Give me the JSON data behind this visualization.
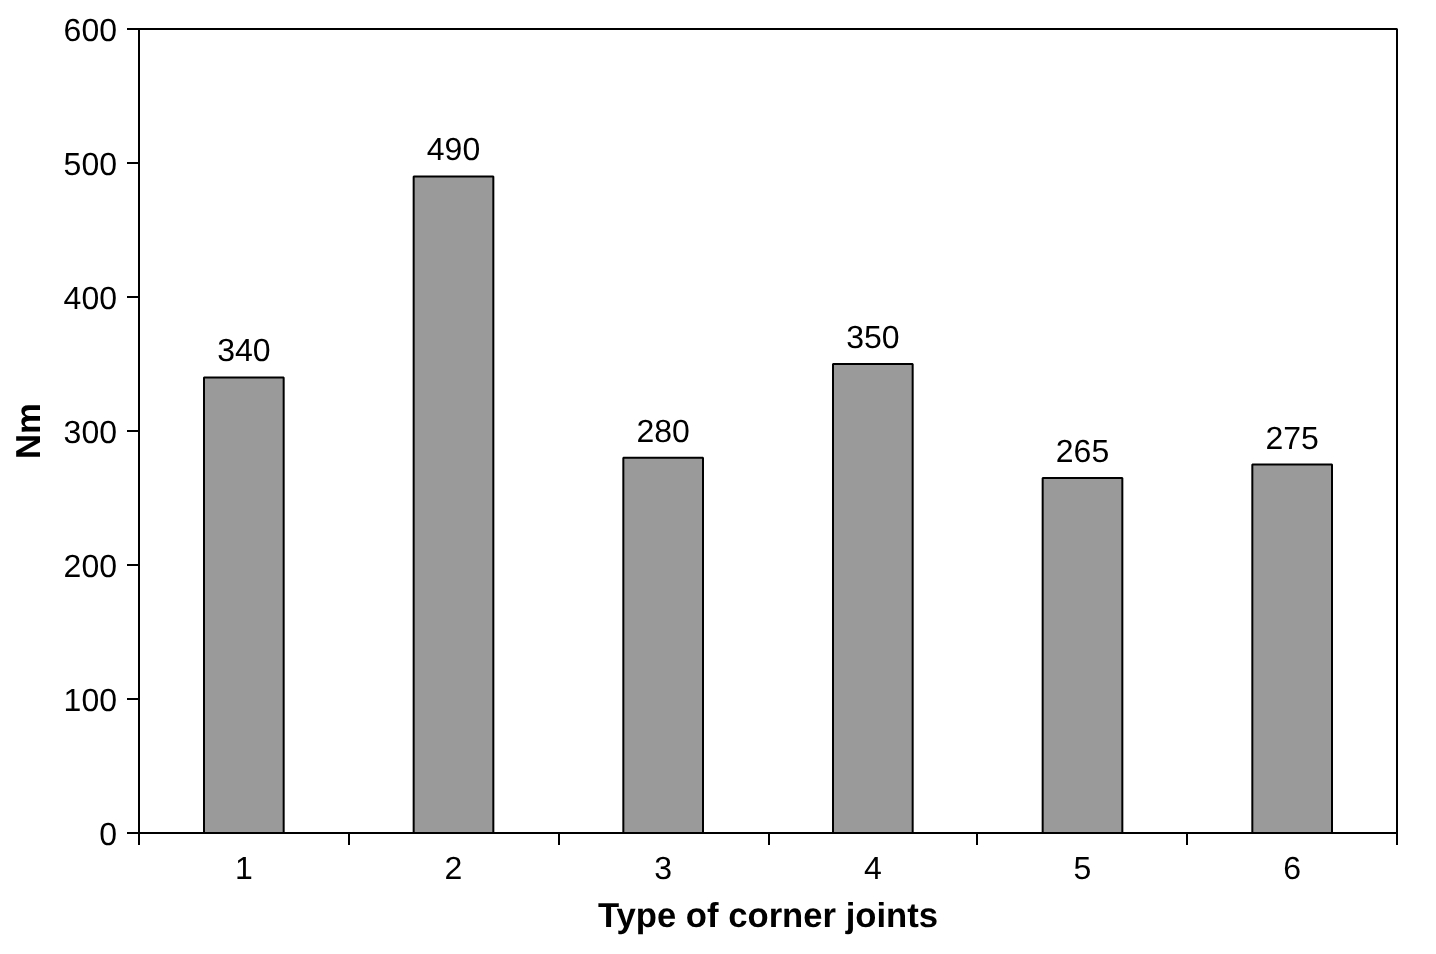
{
  "chart_data": {
    "type": "bar",
    "xlabel": "Type of corner joints",
    "ylabel": "Nm",
    "categories": [
      "1",
      "2",
      "3",
      "4",
      "5",
      "6"
    ],
    "values": [
      340,
      490,
      280,
      350,
      265,
      275
    ],
    "color": "#9a9a9a",
    "ylim": [
      0,
      600
    ],
    "yticks": [
      0,
      100,
      200,
      300,
      400,
      500,
      600
    ],
    "data_labels": true,
    "grid": false
  }
}
